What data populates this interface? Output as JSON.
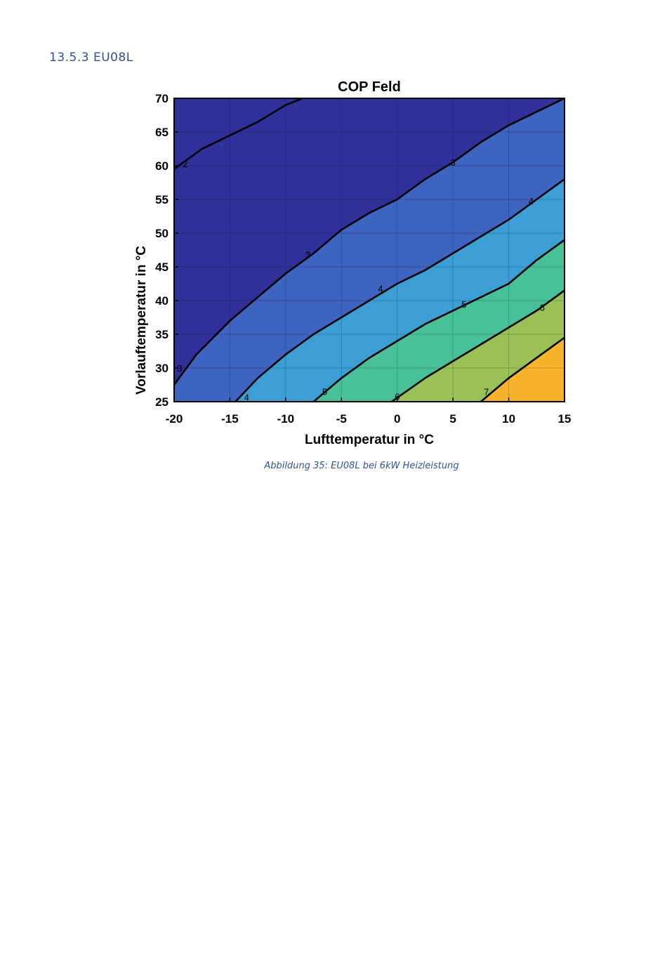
{
  "heading": "13.5.3  EU08L",
  "caption": "Abbildung 35: EU08L bei 6kW Heizleistung",
  "chart_data": {
    "type": "contour",
    "title": "COP Feld",
    "xlabel": "Lufttemperatur in °C",
    "ylabel": "Vorlauftemperatur in °C",
    "xlim": [
      -20,
      15
    ],
    "ylim": [
      25,
      70
    ],
    "xticks": [
      -20,
      -15,
      -10,
      -5,
      0,
      5,
      10,
      15
    ],
    "yticks": [
      25,
      30,
      35,
      40,
      45,
      50,
      55,
      60,
      65,
      70
    ],
    "grid": true,
    "levels": [
      2,
      3,
      4,
      5,
      6,
      7
    ],
    "contours": [
      {
        "level": 2,
        "label": "2",
        "x": [
          -20,
          -17.5,
          -15,
          -12.5,
          -10,
          -8.5
        ],
        "y": [
          59.5,
          62.5,
          64.5,
          66.5,
          69,
          70
        ],
        "label_at": [
          -19,
          60.3
        ]
      },
      {
        "level": 3,
        "label": "3",
        "x": [
          -20,
          -18,
          -15,
          -12.5,
          -10,
          -7.5,
          -5,
          -2.5,
          0,
          2.5,
          5,
          7.5,
          10,
          12.5,
          15
        ],
        "y": [
          27.5,
          32,
          37,
          40.5,
          44,
          47,
          50.5,
          53,
          55,
          58,
          60.5,
          63.5,
          66,
          68,
          70
        ],
        "label_at": [
          -8,
          46.8
        ]
      },
      {
        "level": 4,
        "label": "4",
        "x": [
          -14.5,
          -12.5,
          -10,
          -7.5,
          -5,
          -2.5,
          0,
          2.5,
          5,
          7.5,
          10,
          12.5,
          15
        ],
        "y": [
          25,
          28.5,
          32,
          35,
          37.5,
          40,
          42.5,
          44.5,
          47,
          49.5,
          52,
          55,
          58
        ],
        "label_at": [
          -1.5,
          41.8
        ]
      },
      {
        "level": 5,
        "label": "5",
        "x": [
          -7.5,
          -5,
          -2.5,
          0,
          2.5,
          5,
          7.5,
          10,
          12.5,
          15
        ],
        "y": [
          25,
          28.5,
          31.5,
          34,
          36.5,
          38.5,
          40.5,
          42.5,
          46,
          49
        ],
        "label_at": [
          6,
          39.5
        ]
      },
      {
        "level": 6,
        "label": "6",
        "x": [
          -0.5,
          2.5,
          5,
          7.5,
          10,
          12.5,
          15
        ],
        "y": [
          25,
          28.5,
          31,
          33.5,
          36,
          38.5,
          41.5
        ],
        "label_at": [
          13,
          39
        ]
      },
      {
        "level": 7,
        "label": "7",
        "x": [
          7.5,
          10,
          12.5,
          15
        ],
        "y": [
          25,
          28.5,
          31.5,
          34.5
        ],
        "label_at": [
          8,
          26.5
        ]
      }
    ],
    "extra_labels": [
      {
        "label": "3",
        "at": [
          -19.5,
          30
        ]
      },
      {
        "label": "3",
        "at": [
          5,
          60.5
        ]
      },
      {
        "label": "4",
        "at": [
          -13.5,
          25.7
        ]
      },
      {
        "label": "4",
        "at": [
          12,
          54.8
        ]
      },
      {
        "label": "5",
        "at": [
          -6.5,
          26.5
        ]
      },
      {
        "label": "6",
        "at": [
          0,
          25.8
        ]
      }
    ],
    "colors": [
      "#30309b",
      "#3d64c1",
      "#3b9fd4",
      "#48c19b",
      "#99c158",
      "#f6b42e"
    ]
  }
}
